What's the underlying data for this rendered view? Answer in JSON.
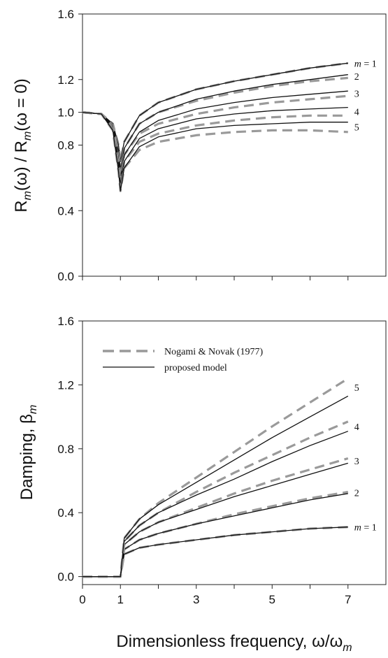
{
  "chart_data": [
    {
      "type": "line",
      "panel": "top",
      "ylabel": "R_m(ω) / R_m(ω=0)",
      "xlim": [
        0,
        8
      ],
      "ylim": [
        0,
        1.6
      ],
      "yticks": [
        "0.0",
        "0.4",
        "0.8",
        "1.0",
        "1.2",
        "1.6"
      ],
      "curve_labels": [
        "m = 1",
        "2",
        "3",
        "4",
        "5"
      ],
      "series": [
        {
          "name": "m = 1",
          "style": "both",
          "x": [
            0,
            0.5,
            0.8,
            0.95,
            1.0,
            1.1,
            1.5,
            2,
            3,
            4,
            5,
            6,
            7
          ],
          "nogami": [
            1.0,
            0.99,
            0.93,
            0.8,
            0.7,
            0.82,
            0.98,
            1.06,
            1.14,
            1.19,
            1.23,
            1.27,
            1.3
          ],
          "model": [
            1.0,
            0.99,
            0.93,
            0.8,
            0.7,
            0.82,
            0.98,
            1.06,
            1.14,
            1.19,
            1.23,
            1.27,
            1.3
          ]
        },
        {
          "name": "2",
          "x": [
            0,
            0.5,
            0.8,
            0.95,
            1.0,
            1.1,
            1.5,
            2,
            3,
            4,
            5,
            6,
            7
          ],
          "nogami": [
            1.0,
            0.99,
            0.92,
            0.76,
            0.65,
            0.78,
            0.93,
            1.0,
            1.07,
            1.12,
            1.16,
            1.19,
            1.21
          ],
          "model": [
            1.0,
            0.99,
            0.92,
            0.76,
            0.65,
            0.78,
            0.93,
            1.0,
            1.08,
            1.13,
            1.17,
            1.2,
            1.23
          ]
        },
        {
          "name": "3",
          "x": [
            0,
            0.5,
            0.8,
            0.95,
            1.0,
            1.1,
            1.5,
            2,
            3,
            4,
            5,
            6,
            7
          ],
          "nogami": [
            1.0,
            0.99,
            0.91,
            0.72,
            0.6,
            0.74,
            0.87,
            0.93,
            0.99,
            1.03,
            1.06,
            1.08,
            1.1
          ],
          "model": [
            1.0,
            0.99,
            0.91,
            0.72,
            0.6,
            0.74,
            0.88,
            0.95,
            1.02,
            1.06,
            1.09,
            1.11,
            1.13
          ]
        },
        {
          "name": "4",
          "x": [
            0,
            0.5,
            0.8,
            0.95,
            1.0,
            1.1,
            1.5,
            2,
            3,
            4,
            5,
            6,
            7
          ],
          "nogami": [
            1.0,
            0.99,
            0.9,
            0.68,
            0.56,
            0.7,
            0.82,
            0.87,
            0.92,
            0.95,
            0.97,
            0.98,
            0.98
          ],
          "model": [
            1.0,
            0.99,
            0.9,
            0.68,
            0.56,
            0.7,
            0.84,
            0.9,
            0.96,
            0.99,
            1.01,
            1.02,
            1.03
          ]
        },
        {
          "name": "5",
          "x": [
            0,
            0.5,
            0.8,
            0.95,
            1.0,
            1.1,
            1.5,
            2,
            3,
            4,
            5,
            6,
            7
          ],
          "nogami": [
            1.0,
            0.99,
            0.89,
            0.64,
            0.52,
            0.66,
            0.77,
            0.82,
            0.86,
            0.88,
            0.89,
            0.89,
            0.88
          ],
          "model": [
            1.0,
            0.99,
            0.89,
            0.64,
            0.52,
            0.66,
            0.79,
            0.85,
            0.9,
            0.92,
            0.93,
            0.94,
            0.94
          ]
        }
      ]
    },
    {
      "type": "line",
      "panel": "bottom",
      "ylabel": "Damping, β_m",
      "xlabel": "Dimensionless frequency, ω/ω_m",
      "xlim": [
        0,
        8
      ],
      "ylim": [
        -0.05,
        1.6
      ],
      "xticks": [
        "0",
        "1",
        "3",
        "5",
        "7"
      ],
      "yticks": [
        "0.0",
        "0.4",
        "0.8",
        "1.2",
        "1.6"
      ],
      "legend": [
        "Nogami & Novak (1977)",
        "proposed model"
      ],
      "legend_position": "top-left",
      "curve_labels": [
        "m = 1",
        "2",
        "3",
        "4",
        "5"
      ],
      "series": [
        {
          "name": "m = 1",
          "x": [
            0,
            0.9,
            1.0,
            1.1,
            1.5,
            2,
            3,
            4,
            5,
            6,
            7
          ],
          "nogami": [
            0,
            0.0,
            0.0,
            0.14,
            0.18,
            0.2,
            0.23,
            0.26,
            0.28,
            0.3,
            0.31
          ],
          "model": [
            0,
            0.0,
            0.0,
            0.14,
            0.18,
            0.2,
            0.23,
            0.26,
            0.28,
            0.3,
            0.31
          ]
        },
        {
          "name": "2",
          "x": [
            0,
            0.9,
            1.0,
            1.1,
            1.5,
            2,
            3,
            4,
            5,
            6,
            7
          ],
          "nogami": [
            0,
            0.0,
            0.0,
            0.17,
            0.23,
            0.27,
            0.33,
            0.39,
            0.44,
            0.49,
            0.53
          ],
          "model": [
            0,
            0.0,
            0.0,
            0.17,
            0.23,
            0.27,
            0.33,
            0.38,
            0.43,
            0.48,
            0.52
          ]
        },
        {
          "name": "3",
          "x": [
            0,
            0.9,
            1.0,
            1.1,
            1.5,
            2,
            3,
            4,
            5,
            6,
            7
          ],
          "nogami": [
            0,
            0.0,
            0.0,
            0.2,
            0.28,
            0.34,
            0.43,
            0.52,
            0.6,
            0.67,
            0.74
          ],
          "model": [
            0,
            0.0,
            0.0,
            0.2,
            0.28,
            0.34,
            0.42,
            0.5,
            0.57,
            0.64,
            0.71
          ]
        },
        {
          "name": "4",
          "x": [
            0,
            0.9,
            1.0,
            1.1,
            1.5,
            2,
            3,
            4,
            5,
            6,
            7
          ],
          "nogami": [
            0,
            0.0,
            0.0,
            0.22,
            0.32,
            0.4,
            0.53,
            0.65,
            0.76,
            0.87,
            0.97
          ],
          "model": [
            0,
            0.0,
            0.0,
            0.22,
            0.32,
            0.4,
            0.51,
            0.61,
            0.72,
            0.82,
            0.91
          ]
        },
        {
          "name": "5",
          "x": [
            0,
            0.9,
            1.0,
            1.1,
            1.5,
            2,
            3,
            4,
            5,
            6,
            7
          ],
          "nogami": [
            0,
            0.0,
            0.0,
            0.24,
            0.36,
            0.46,
            0.62,
            0.78,
            0.94,
            1.09,
            1.24
          ],
          "model": [
            0,
            0.0,
            0.0,
            0.24,
            0.36,
            0.45,
            0.59,
            0.73,
            0.87,
            1.0,
            1.13
          ]
        }
      ]
    }
  ]
}
